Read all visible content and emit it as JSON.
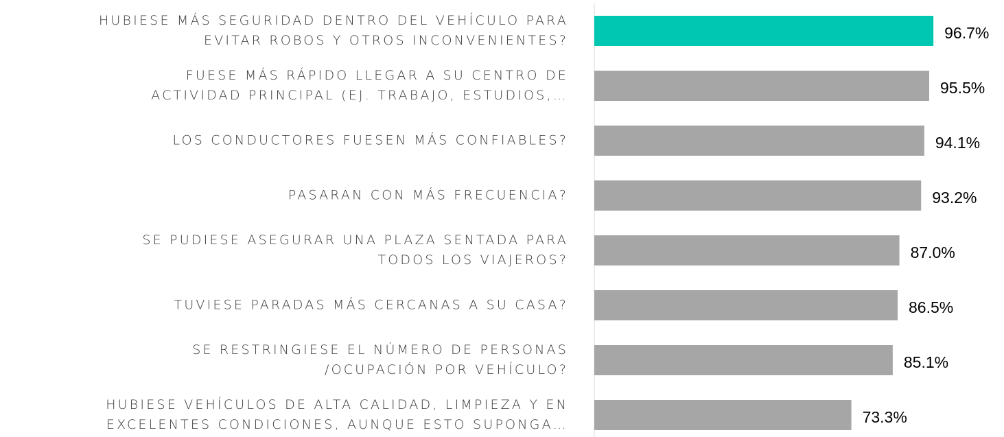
{
  "chart_data": {
    "type": "barh",
    "categories": [
      "HUBIESE MÁS SEGURIDAD DENTRO DEL VEHÍCULO PARA\nEVITAR ROBOS Y OTROS INCONVENIENTES?",
      "FUESE MÁS RÁPIDO LLEGAR A SU CENTRO DE\nACTIVIDAD PRINCIPAL (EJ. TRABAJO, ESTUDIOS,…",
      "LOS CONDUCTORES FUESEN MÁS CONFIABLES?",
      "PASARAN CON MÁS FRECUENCIA?",
      "SE PUDIESE ASEGURAR UNA PLAZA SENTADA PARA\nTODOS LOS VIAJEROS?",
      "TUVIESE PARADAS MÁS CERCANAS A SU CASA?",
      "SE RESTRINGIESE EL NÚMERO DE PERSONAS\n/OCUPACIÓN POR VEHÍCULO?",
      "HUBIESE VEHÍCULOS DE ALTA CALIDAD, LIMPIEZA Y EN\nEXCELENTES CONDICIONES, AUNQUE ESTO SUPONGA…"
    ],
    "values": [
      96.7,
      95.5,
      94.1,
      93.2,
      87.0,
      86.5,
      85.1,
      73.3
    ],
    "value_labels": [
      "96.7%",
      "95.5%",
      "94.1%",
      "93.2%",
      "87.0%",
      "86.5%",
      "85.1%",
      "73.3%"
    ],
    "colors": [
      "#00c7b2",
      "#a6a6a6",
      "#a6a6a6",
      "#a6a6a6",
      "#a6a6a6",
      "#a6a6a6",
      "#a6a6a6",
      "#a6a6a6"
    ],
    "xlim": [
      0,
      100
    ]
  }
}
